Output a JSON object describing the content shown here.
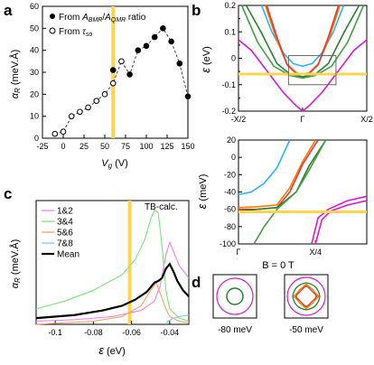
{
  "panel_labels": {
    "a": "a",
    "b": "b",
    "c": "c",
    "d": "d"
  },
  "colors": {
    "gate_line": "#FFD54F",
    "fermi": "#FFD54F"
  },
  "chart_data": [
    {
      "id": "a",
      "type": "scatter",
      "xlabel": "V_g (V)",
      "ylabel": "α_R (meV.Å)",
      "xlim": [
        -25,
        150
      ],
      "ylim": [
        0,
        60
      ],
      "xticks": [
        "-25",
        "0",
        "25",
        "50",
        "75",
        "100",
        "125",
        "150"
      ],
      "yticks": [
        "0",
        "10",
        "20",
        "30",
        "40",
        "50",
        "60"
      ],
      "vline_x": 60,
      "legend_placement": "top-left",
      "series": [
        {
          "name": "From A_BMR/A_QMR ratio",
          "marker": "filled-circle",
          "x": [
            60,
            80,
            90,
            100,
            110,
            120,
            130,
            140,
            150
          ],
          "y": [
            31,
            29,
            40,
            42,
            46,
            50,
            44,
            34,
            19
          ]
        },
        {
          "name": "From τ_so",
          "marker": "open-circle",
          "x": [
            -10,
            0,
            10,
            20,
            30,
            40,
            50,
            60,
            70
          ],
          "y": [
            2,
            3,
            10,
            12,
            14,
            17,
            20,
            25,
            35
          ]
        }
      ],
      "dashed_path_x": [
        -10,
        0,
        10,
        20,
        30,
        40,
        50,
        60,
        70,
        80,
        90,
        100,
        110,
        120,
        130,
        140,
        150
      ],
      "dashed_path_y": [
        2,
        3,
        10,
        12,
        14,
        17,
        20,
        25,
        35,
        29,
        40,
        42,
        46,
        50,
        44,
        34,
        19
      ]
    },
    {
      "id": "b-top",
      "type": "line",
      "ylabel": "ε (eV)",
      "xticks": [
        "-X/2",
        "Γ",
        "X/2"
      ],
      "yticks": [
        "-0.2",
        "-0.15",
        "-0.1",
        "-0.05",
        "0",
        "0.05",
        "0.1",
        "0.15",
        "0.2"
      ],
      "xlim": [
        -1,
        1
      ],
      "ylim": [
        -0.2,
        0.2
      ],
      "fermi_level": -0.06,
      "series": [
        {
          "name": "",
          "color": "#29B6F6",
          "k": [
            -0.64,
            -0.48,
            -0.3,
            -0.15,
            0,
            0.15,
            0.3,
            0.48,
            0.64
          ],
          "e": [
            0.2,
            0.1,
            0.02,
            -0.02,
            -0.03,
            -0.02,
            0.02,
            0.1,
            0.2
          ]
        },
        {
          "name": "",
          "color": "#F57C00",
          "k": [
            -0.58,
            -0.42,
            -0.25,
            -0.1,
            0,
            0.1,
            0.25,
            0.42,
            0.58
          ],
          "e": [
            0.2,
            0.08,
            -0.02,
            -0.055,
            -0.06,
            -0.055,
            -0.02,
            0.08,
            0.2
          ]
        },
        {
          "name": "",
          "color": "#E53935",
          "k": [
            -0.56,
            -0.4,
            -0.24,
            -0.1,
            0,
            0.1,
            0.24,
            0.4,
            0.56
          ],
          "e": [
            0.2,
            0.08,
            -0.025,
            -0.058,
            -0.062,
            -0.058,
            -0.025,
            0.08,
            0.2
          ]
        },
        {
          "name": "",
          "color": "#2E7D32",
          "k": [
            -0.88,
            -0.65,
            -0.4,
            -0.2,
            0,
            0.2,
            0.4,
            0.65,
            0.88
          ],
          "e": [
            0.2,
            0.1,
            -0.02,
            -0.06,
            -0.07,
            -0.06,
            -0.02,
            0.1,
            0.2
          ]
        },
        {
          "name": "",
          "color": "#43A047",
          "k": [
            -0.95,
            -0.7,
            -0.45,
            -0.2,
            0,
            0.2,
            0.45,
            0.7,
            0.95
          ],
          "e": [
            0.2,
            0.06,
            -0.03,
            -0.065,
            -0.075,
            -0.065,
            -0.03,
            0.06,
            0.2
          ]
        },
        {
          "name": "",
          "color": "#D81BD8",
          "k": [
            -1,
            -0.8,
            -0.55,
            -0.3,
            -0.1,
            0,
            0.1,
            0.3,
            0.55,
            0.8,
            1
          ],
          "e": [
            0.07,
            0.03,
            -0.05,
            -0.13,
            -0.18,
            -0.2,
            -0.18,
            -0.13,
            -0.05,
            0.03,
            0.07
          ]
        }
      ],
      "zoom_box": {
        "k": [
          -0.22,
          0.52
        ],
        "e": [
          -0.1,
          0.01
        ]
      }
    },
    {
      "id": "b-bottom",
      "type": "line",
      "ylabel": "ε (meV)",
      "xticks": [
        "Γ",
        "X/4"
      ],
      "yticks": [
        "-100",
        "-80",
        "-60",
        "-40",
        "-20",
        "0",
        "20"
      ],
      "xlim": [
        0,
        1
      ],
      "ylim": [
        -100,
        20
      ],
      "fermi_level": -63,
      "series": [
        {
          "name": "",
          "color": "#29B6F6",
          "k": [
            0,
            0.1,
            0.2,
            0.3,
            0.4
          ],
          "e": [
            -43,
            -40,
            -30,
            -12,
            20
          ]
        },
        {
          "name": "",
          "color": "#F57C00",
          "k": [
            0,
            0.15,
            0.3,
            0.4,
            0.5,
            0.6
          ],
          "e": [
            -58,
            -57,
            -55,
            -35,
            -5,
            20
          ]
        },
        {
          "name": "",
          "color": "#E53935",
          "k": [
            0,
            0.15,
            0.3,
            0.4,
            0.5,
            0.62
          ],
          "e": [
            -60,
            -60,
            -58,
            -40,
            -8,
            20
          ]
        },
        {
          "name": "",
          "color": "#2E7D32",
          "k": [
            0,
            0.15,
            0.3,
            0.45,
            0.55,
            0.68
          ],
          "e": [
            -62,
            -60,
            -58,
            -40,
            -10,
            20
          ]
        },
        {
          "name": "",
          "color": "#43A047",
          "k": [
            0.12,
            0.2,
            0.3,
            0.45,
            0.55,
            0.68
          ],
          "e": [
            -100,
            -80,
            -60,
            -40,
            -15,
            20
          ]
        },
        {
          "name": "",
          "color": "#D81BD8",
          "k": [
            0.57,
            0.62,
            0.7,
            0.85,
            1.0
          ],
          "e": [
            -100,
            -70,
            -60,
            -50,
            -45
          ]
        },
        {
          "name": "",
          "color": "#D81BD8",
          "k": [
            0.6,
            0.65,
            0.72,
            0.85,
            1.0
          ],
          "e": [
            -100,
            -72,
            -62,
            -55,
            -50
          ]
        }
      ]
    },
    {
      "id": "c",
      "type": "line",
      "xlabel": "ε (eV)",
      "ylabel": "α_R (meV.Å)",
      "annotation": "TB-calc.",
      "xlim": [
        -0.11,
        -0.03
      ],
      "ylim": [
        0,
        80
      ],
      "xticks": [
        "-0.1",
        "-0.08",
        "-0.06",
        "-0.04"
      ],
      "vline_x": -0.061,
      "series": [
        {
          "name": "1&2",
          "color": "#EE82EE",
          "x": [
            -0.11,
            -0.09,
            -0.07,
            -0.055,
            -0.048,
            -0.045,
            -0.042,
            -0.04,
            -0.038,
            -0.035,
            -0.03
          ],
          "y": [
            2,
            3,
            5,
            9,
            15,
            25,
            45,
            53,
            47,
            38,
            30
          ]
        },
        {
          "name": "3&4",
          "color": "#7FE07F",
          "x": [
            -0.11,
            -0.095,
            -0.08,
            -0.065,
            -0.058,
            -0.053,
            -0.05,
            -0.048,
            -0.046,
            -0.044,
            -0.042,
            -0.04,
            -0.035,
            -0.03
          ],
          "y": [
            10,
            15,
            22,
            32,
            42,
            55,
            68,
            74,
            72,
            50,
            22,
            10,
            4,
            2
          ]
        },
        {
          "name": "5&6",
          "color": "#F4A460",
          "x": [
            -0.11,
            -0.08,
            -0.065,
            -0.055,
            -0.05,
            -0.047,
            -0.045,
            -0.042,
            -0.04,
            -0.035,
            -0.03
          ],
          "y": [
            0,
            2,
            5,
            12,
            22,
            27,
            20,
            10,
            5,
            2,
            1
          ]
        },
        {
          "name": "7&8",
          "color": "#7EC8F0",
          "x": [
            -0.042,
            -0.041,
            -0.038,
            -0.035,
            -0.03
          ],
          "y": [
            0,
            2,
            4,
            5,
            6
          ]
        },
        {
          "name": "Mean",
          "color": "#000000",
          "x": [
            -0.11,
            -0.09,
            -0.075,
            -0.065,
            -0.058,
            -0.052,
            -0.048,
            -0.046,
            -0.044,
            -0.042,
            -0.04,
            -0.038,
            -0.036,
            -0.033,
            -0.03
          ],
          "y": [
            4,
            6,
            9,
            12,
            16,
            21,
            27,
            28,
            30,
            36,
            39,
            34,
            28,
            22,
            18
          ]
        }
      ]
    }
  ],
  "panel_d": {
    "title": "B = 0 T",
    "insets": [
      {
        "label": "-80 meV"
      },
      {
        "label": "-50 meV"
      }
    ]
  }
}
